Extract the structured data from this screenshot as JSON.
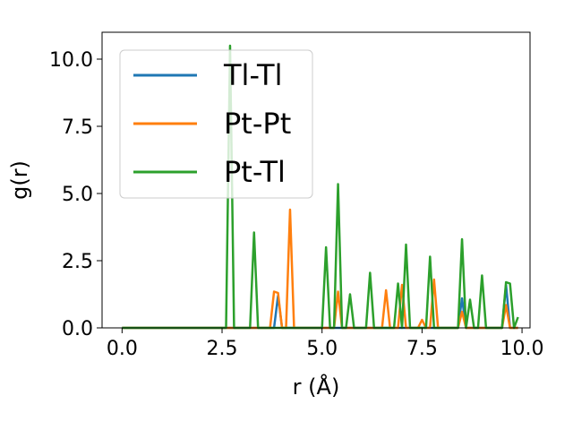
{
  "chart_data": {
    "type": "line",
    "xlabel": "r (Å)",
    "ylabel": "g(r)",
    "xlim": [
      -0.5,
      10.2
    ],
    "ylim": [
      0,
      11
    ],
    "x_ticks": [
      "0.0",
      "2.5",
      "5.0",
      "7.5",
      "10.0"
    ],
    "y_ticks": [
      "0.0",
      "2.5",
      "5.0",
      "7.5",
      "10.0"
    ],
    "grid": false,
    "legend_position": "upper-left",
    "series": [
      {
        "name": "Tl-Tl",
        "color": "#1f77b4",
        "x": [
          0.0,
          0.1,
          0.2,
          0.3,
          0.4,
          0.5,
          0.6,
          0.7,
          0.8,
          0.9,
          1.0,
          1.1,
          1.2,
          1.3,
          1.4,
          1.5,
          1.6,
          1.7,
          1.8,
          1.9,
          2.0,
          2.1,
          2.2,
          2.3,
          2.4,
          2.5,
          2.6,
          2.7,
          2.8,
          2.9,
          3.0,
          3.1,
          3.2,
          3.3,
          3.4,
          3.5,
          3.6,
          3.7,
          3.8,
          3.9,
          4.0,
          4.1,
          4.2,
          4.3,
          4.4,
          4.5,
          4.6,
          4.7,
          4.8,
          4.9,
          5.0,
          5.1,
          5.2,
          5.3,
          5.4,
          5.5,
          5.6,
          5.7,
          5.8,
          5.9,
          6.0,
          6.1,
          6.2,
          6.3,
          6.4,
          6.5,
          6.6,
          6.7,
          6.8,
          6.9,
          7.0,
          7.1,
          7.2,
          7.3,
          7.4,
          7.5,
          7.6,
          7.7,
          7.8,
          7.9,
          8.0,
          8.1,
          8.2,
          8.3,
          8.4,
          8.5,
          8.6,
          8.7,
          8.8,
          8.9,
          9.0,
          9.1,
          9.2,
          9.3,
          9.4,
          9.5,
          9.6,
          9.7,
          9.8,
          9.9
        ],
        "y": [
          0,
          0,
          0,
          0,
          0,
          0,
          0,
          0,
          0,
          0,
          0,
          0,
          0,
          0,
          0,
          0,
          0,
          0,
          0,
          0,
          0,
          0,
          0,
          0,
          0,
          0,
          0,
          0,
          0,
          0,
          0,
          0,
          0,
          0,
          0,
          0,
          0,
          0,
          0,
          1.2,
          0,
          0,
          0,
          0,
          0,
          0,
          0,
          0,
          0,
          0,
          0,
          0,
          0,
          0,
          0,
          0,
          0,
          0,
          0,
          0,
          0,
          0,
          0,
          0,
          0,
          0,
          0,
          0,
          0,
          0,
          0,
          0,
          0,
          0,
          0,
          0,
          0,
          0,
          0,
          0,
          0,
          0,
          0,
          0,
          0,
          1.1,
          0,
          0,
          0,
          0,
          0,
          0,
          0,
          0,
          0,
          0,
          1.6,
          0,
          0,
          0
        ]
      },
      {
        "name": "Pt-Pt",
        "color": "#ff7f0e",
        "x": [
          0.0,
          0.1,
          0.2,
          0.3,
          0.4,
          0.5,
          0.6,
          0.7,
          0.8,
          0.9,
          1.0,
          1.1,
          1.2,
          1.3,
          1.4,
          1.5,
          1.6,
          1.7,
          1.8,
          1.9,
          2.0,
          2.1,
          2.2,
          2.3,
          2.4,
          2.5,
          2.6,
          2.7,
          2.8,
          2.9,
          3.0,
          3.1,
          3.2,
          3.3,
          3.4,
          3.5,
          3.6,
          3.7,
          3.8,
          3.9,
          4.0,
          4.1,
          4.2,
          4.3,
          4.4,
          4.5,
          4.6,
          4.7,
          4.8,
          4.9,
          5.0,
          5.1,
          5.2,
          5.3,
          5.4,
          5.5,
          5.6,
          5.7,
          5.8,
          5.9,
          6.0,
          6.1,
          6.2,
          6.3,
          6.4,
          6.5,
          6.6,
          6.7,
          6.8,
          6.9,
          7.0,
          7.1,
          7.2,
          7.3,
          7.4,
          7.5,
          7.6,
          7.7,
          7.8,
          7.9,
          8.0,
          8.1,
          8.2,
          8.3,
          8.4,
          8.5,
          8.6,
          8.7,
          8.8,
          8.9,
          9.0,
          9.1,
          9.2,
          9.3,
          9.4,
          9.5,
          9.6,
          9.7,
          9.8,
          9.9
        ],
        "y": [
          0,
          0,
          0,
          0,
          0,
          0,
          0,
          0,
          0,
          0,
          0,
          0,
          0,
          0,
          0,
          0,
          0,
          0,
          0,
          0,
          0,
          0,
          0,
          0,
          0,
          0,
          0,
          0,
          0,
          0,
          0,
          0,
          0,
          0,
          0,
          0,
          0,
          0,
          1.35,
          1.3,
          0,
          0,
          4.4,
          0,
          0,
          0,
          0,
          0,
          0,
          0,
          0,
          0,
          0,
          0,
          1.35,
          0,
          0,
          0,
          0,
          0,
          0,
          0,
          0,
          0,
          0,
          0,
          1.4,
          0,
          0,
          0,
          1.6,
          0,
          0,
          0,
          0,
          0.3,
          0,
          0,
          1.8,
          0,
          0,
          0,
          0,
          0,
          0,
          0.6,
          0,
          0,
          0,
          0,
          0,
          0,
          0,
          0,
          0,
          0,
          0.85,
          0,
          0,
          0
        ]
      },
      {
        "name": "Pt-Tl",
        "color": "#2ca02c",
        "x": [
          0.0,
          0.1,
          0.2,
          0.3,
          0.4,
          0.5,
          0.6,
          0.7,
          0.8,
          0.9,
          1.0,
          1.1,
          1.2,
          1.3,
          1.4,
          1.5,
          1.6,
          1.7,
          1.8,
          1.9,
          2.0,
          2.1,
          2.2,
          2.3,
          2.4,
          2.5,
          2.6,
          2.7,
          2.8,
          2.9,
          3.0,
          3.1,
          3.2,
          3.3,
          3.4,
          3.5,
          3.6,
          3.7,
          3.8,
          3.9,
          4.0,
          4.1,
          4.2,
          4.3,
          4.4,
          4.5,
          4.6,
          4.7,
          4.8,
          4.9,
          5.0,
          5.1,
          5.2,
          5.3,
          5.4,
          5.5,
          5.6,
          5.7,
          5.8,
          5.9,
          6.0,
          6.1,
          6.2,
          6.3,
          6.4,
          6.5,
          6.6,
          6.7,
          6.8,
          6.9,
          7.0,
          7.1,
          7.2,
          7.3,
          7.4,
          7.5,
          7.6,
          7.7,
          7.8,
          7.9,
          8.0,
          8.1,
          8.2,
          8.3,
          8.4,
          8.5,
          8.6,
          8.7,
          8.8,
          8.9,
          9.0,
          9.1,
          9.2,
          9.3,
          9.4,
          9.5,
          9.6,
          9.7,
          9.8,
          9.9
        ],
        "y": [
          0,
          0,
          0,
          0,
          0,
          0,
          0,
          0,
          0,
          0,
          0,
          0,
          0,
          0,
          0,
          0,
          0,
          0,
          0,
          0,
          0,
          0,
          0,
          0,
          0,
          0,
          0,
          10.5,
          0,
          0,
          0,
          0,
          0,
          3.55,
          0,
          0,
          0,
          0,
          0,
          0,
          0,
          0,
          0,
          0,
          0,
          0,
          0,
          0,
          0,
          0,
          0,
          3.0,
          0,
          0,
          5.35,
          0,
          0,
          1.25,
          0,
          0,
          0,
          0,
          2.05,
          0,
          0,
          0,
          0,
          0,
          0,
          1.65,
          0,
          3.1,
          0,
          0,
          0,
          0,
          0,
          2.65,
          0,
          0,
          0,
          0,
          0,
          0,
          0,
          3.3,
          0,
          1.05,
          0,
          0,
          1.95,
          0,
          0,
          0,
          0,
          0,
          1.7,
          1.65,
          0,
          0.4
        ]
      }
    ]
  }
}
